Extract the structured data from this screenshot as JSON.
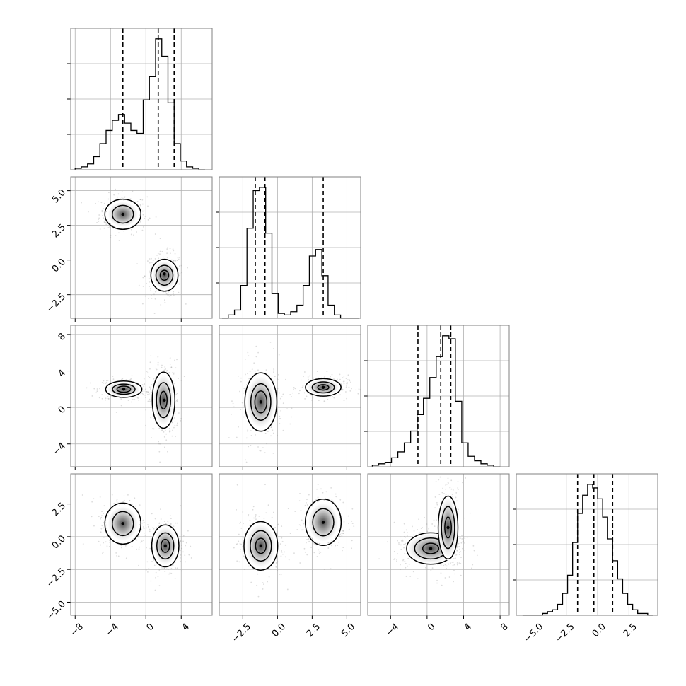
{
  "chart_data": {
    "type": "corner",
    "variables": 4,
    "grid": true,
    "diagonal_histograms": [
      {
        "variable": 0,
        "xlim": [
          -8.5,
          7.5
        ],
        "bins": [
          -8,
          -7.3,
          -6.6,
          -5.9,
          -5.2,
          -4.5,
          -3.8,
          -3.1,
          -2.4,
          -1.7,
          -1.0,
          -0.3,
          0.4,
          1.1,
          1.8,
          2.5,
          3.2,
          3.9,
          4.6,
          5.3,
          6.0,
          6.7
        ],
        "counts": [
          1,
          2,
          4,
          9,
          18,
          27,
          34,
          38,
          32,
          27,
          25,
          48,
          64,
          90,
          78,
          46,
          18,
          6,
          2,
          1,
          0
        ],
        "quantiles": [
          -2.6,
          1.4,
          3.2
        ]
      },
      {
        "variable": 1,
        "xlim": [
          -4.2,
          6.0
        ],
        "bins": [
          -4.0,
          -3.55,
          -3.1,
          -2.65,
          -2.2,
          -1.75,
          -1.3,
          -0.85,
          -0.4,
          0.05,
          0.5,
          0.95,
          1.4,
          1.85,
          2.3,
          2.75,
          3.2,
          3.65,
          4.1,
          4.55,
          5.0,
          5.45,
          5.9
        ],
        "counts": [
          0,
          2,
          5,
          20,
          55,
          78,
          80,
          52,
          15,
          3,
          2,
          4,
          8,
          20,
          38,
          42,
          26,
          8,
          2,
          0,
          0,
          0
        ],
        "quantiles": [
          -1.6,
          -0.9,
          3.3
        ]
      },
      {
        "variable": 2,
        "xlim": [
          -6.5,
          9.0
        ],
        "bins": [
          -6.0,
          -5.3,
          -4.6,
          -3.9,
          -3.2,
          -2.5,
          -1.8,
          -1.1,
          -0.4,
          0.3,
          1.0,
          1.7,
          2.4,
          3.1,
          3.8,
          4.5,
          5.2,
          5.9,
          6.6,
          7.3,
          8.0
        ],
        "counts": [
          1,
          2,
          3,
          6,
          10,
          16,
          24,
          35,
          46,
          60,
          74,
          88,
          86,
          44,
          16,
          7,
          4,
          2,
          1,
          0
        ],
        "quantiles": [
          -1.0,
          1.5,
          2.6
        ]
      },
      {
        "variable": 3,
        "xlim": [
          -6.5,
          4.8
        ],
        "bins": [
          -6.0,
          -5.6,
          -5.2,
          -4.8,
          -4.4,
          -4.0,
          -3.6,
          -3.2,
          -2.8,
          -2.4,
          -2.0,
          -1.6,
          -1.2,
          -0.8,
          -0.4,
          0.0,
          0.4,
          0.8,
          1.2,
          1.6,
          2.0,
          2.4,
          2.8,
          3.2,
          3.6,
          4.0,
          4.4
        ],
        "counts": [
          0,
          0,
          0,
          0,
          1,
          2,
          3,
          6,
          12,
          22,
          40,
          56,
          66,
          72,
          70,
          64,
          54,
          42,
          30,
          20,
          12,
          6,
          3,
          1,
          1,
          0
        ],
        "quantiles": [
          -1.6,
          -0.3,
          1.2
        ]
      }
    ],
    "pair_panels": [
      {
        "x_variable": 0,
        "y_variable": 1,
        "xlim": [
          -8.5,
          7.5
        ],
        "ylim": [
          -4.2,
          6.0
        ],
        "clusters": [
          {
            "center": [
              -2.6,
              3.3
            ],
            "spread": [
              1.5,
              0.8
            ],
            "rotation": 0,
            "levels": [
              1.0,
              1.7
            ],
            "peak": [
              -2.6,
              3.3
            ]
          },
          {
            "center": [
              2.1,
              -1.1
            ],
            "spread": [
              1.2,
              0.9
            ],
            "rotation": 0,
            "levels": [
              0.5,
              1.0,
              1.6
            ],
            "peak": [
              2.1,
              -1.0
            ]
          }
        ]
      },
      {
        "x_variable": 0,
        "y_variable": 2,
        "xlim": [
          -8.5,
          7.5
        ],
        "ylim": [
          -6.5,
          9.0
        ],
        "clusters": [
          {
            "center": [
              -2.5,
              2.0
            ],
            "spread": [
              1.6,
              0.7
            ],
            "rotation": 0,
            "levels": [
              0.6,
              1.0,
              1.6
            ],
            "peak": [
              -2.5,
              2.0
            ]
          },
          {
            "center": [
              2.0,
              0.8
            ],
            "spread": [
              1.0,
              2.4
            ],
            "rotation": 0,
            "levels": [
              0.5,
              1.0,
              1.6
            ],
            "peak": [
              2.1,
              0.8
            ]
          }
        ]
      },
      {
        "x_variable": 1,
        "y_variable": 2,
        "xlim": [
          -4.2,
          6.0
        ],
        "ylim": [
          -6.5,
          9.0
        ],
        "clusters": [
          {
            "center": [
              -1.2,
              0.6
            ],
            "spread": [
              0.9,
              2.5
            ],
            "rotation": 0,
            "levels": [
              0.6,
              1.0,
              1.6
            ],
            "peak": [
              -1.2,
              0.6
            ]
          },
          {
            "center": [
              3.3,
              2.2
            ],
            "spread": [
              1.0,
              0.75
            ],
            "rotation": 0,
            "levels": [
              0.5,
              1.0,
              1.6
            ],
            "peak": [
              3.3,
              2.2
            ]
          }
        ]
      },
      {
        "x_variable": 0,
        "y_variable": 3,
        "xlim": [
          -8.5,
          7.5
        ],
        "ylim": [
          -6.0,
          4.8
        ],
        "clusters": [
          {
            "center": [
              -2.6,
              1.0
            ],
            "spread": [
              1.5,
              1.15
            ],
            "rotation": 0,
            "levels": [
              1.0,
              1.7
            ],
            "peak": [
              -2.6,
              1.0
            ]
          },
          {
            "center": [
              2.2,
              -0.7
            ],
            "spread": [
              1.2,
              1.25
            ],
            "rotation": 0,
            "levels": [
              0.5,
              1.0,
              1.6
            ],
            "peak": [
              2.2,
              -0.7
            ]
          }
        ]
      },
      {
        "x_variable": 1,
        "y_variable": 3,
        "xlim": [
          -4.2,
          6.0
        ],
        "ylim": [
          -6.0,
          4.8
        ],
        "clusters": [
          {
            "center": [
              -1.2,
              -0.7
            ],
            "spread": [
              0.95,
              1.45
            ],
            "rotation": 0,
            "levels": [
              0.5,
              1.0,
              1.6
            ],
            "peak": [
              -1.2,
              -0.7
            ]
          },
          {
            "center": [
              3.3,
              1.1
            ],
            "spread": [
              0.95,
              1.3
            ],
            "rotation": 0,
            "levels": [
              1.0,
              1.7
            ],
            "peak": [
              3.3,
              1.1
            ]
          }
        ]
      },
      {
        "x_variable": 2,
        "y_variable": 3,
        "xlim": [
          -6.5,
          9.0
        ],
        "ylim": [
          -6.0,
          4.8
        ],
        "clusters": [
          {
            "center": [
              0.4,
              -0.9
            ],
            "spread": [
              2.2,
              1.0
            ],
            "rotation": 0,
            "levels": [
              0.5,
              1.0,
              1.5
            ],
            "peak": [
              0.4,
              -0.9
            ]
          },
          {
            "center": [
              2.3,
              0.7
            ],
            "spread": [
              0.9,
              2.0
            ],
            "rotation": 0,
            "levels": [
              0.5,
              1.0,
              1.5
            ],
            "peak": [
              2.3,
              0.7
            ]
          }
        ]
      }
    ],
    "axis_ticks": {
      "x": [
        {
          "variable": 0,
          "values": [
            -8,
            -4,
            0,
            4
          ],
          "labels": [
            "−8",
            "−4",
            "0",
            "4"
          ]
        },
        {
          "variable": 1,
          "values": [
            -2.5,
            0.0,
            2.5,
            5.0
          ],
          "labels": [
            "−2.5",
            "0.0",
            "2.5",
            "5.0"
          ]
        },
        {
          "variable": 2,
          "values": [
            -4,
            0,
            4,
            8
          ],
          "labels": [
            "−4",
            "0",
            "4",
            "8"
          ]
        },
        {
          "variable": 3,
          "values": [
            -5.0,
            -2.5,
            0.0,
            2.5
          ],
          "labels": [
            "−5.0",
            "−2.5",
            "0.0",
            "2.5"
          ]
        }
      ],
      "y": [
        {
          "variable": 1,
          "values": [
            -2.5,
            0.0,
            2.5,
            5.0
          ],
          "labels": [
            "−2.5",
            "0.0",
            "2.5",
            "5.0"
          ]
        },
        {
          "variable": 2,
          "values": [
            -4,
            0,
            4,
            8
          ],
          "labels": [
            "−4",
            "0",
            "4",
            "8"
          ]
        },
        {
          "variable": 3,
          "values": [
            -5.0,
            -2.5,
            0.0,
            2.5
          ],
          "labels": [
            "−5.0",
            "−2.5",
            "0.0",
            "2.5"
          ]
        }
      ]
    },
    "colors": {
      "line": "#000000",
      "grid": "#b0b0b0",
      "frame": "#808080",
      "scatter": "#9a9a9a"
    }
  }
}
